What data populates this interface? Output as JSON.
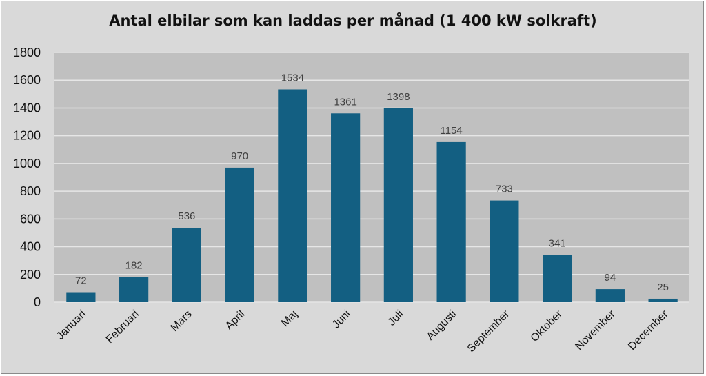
{
  "chart_data": {
    "type": "bar",
    "title": "Antal elbilar som kan laddas per månad (1 400 kW solkraft)",
    "xlabel": "",
    "ylabel": "",
    "categories": [
      "Januari",
      "Februari",
      "Mars",
      "April",
      "Maj",
      "Juni",
      "Juli",
      "Augusti",
      "September",
      "Oktober",
      "November",
      "December"
    ],
    "values": [
      72,
      182,
      536,
      970,
      1534,
      1361,
      1398,
      1154,
      733,
      341,
      94,
      25
    ],
    "ylim": [
      0,
      1800
    ],
    "yticks": [
      0,
      200,
      400,
      600,
      800,
      1000,
      1200,
      1400,
      1600,
      1800
    ],
    "grid": true,
    "data_labels": true,
    "legend": "none"
  },
  "colors": {
    "bar": "#135f82",
    "plot_background": "#c0c0c0",
    "chart_background": "#d9d9d9",
    "gridline": "#e6e6e6"
  }
}
